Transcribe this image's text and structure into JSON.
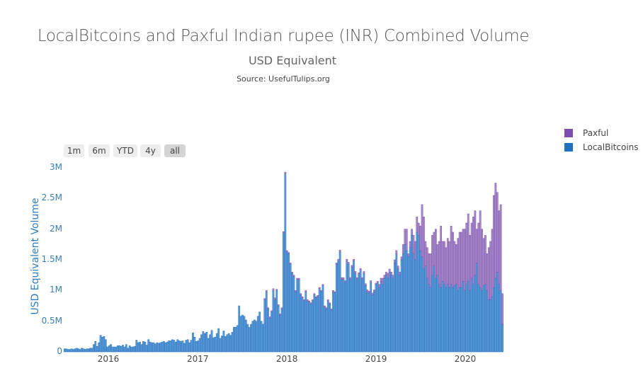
{
  "chart_data": {
    "type": "bar",
    "barmode": "stack",
    "title": "LocalBitcoins and Paxful Indian rupee (INR) Combined Volume",
    "subtitle": "USD Equivalent",
    "source": "Source: UsefulTulips.org",
    "xlabel": "",
    "ylabel": "USD Equivalent Volume",
    "bar_period": "weekly",
    "x_range": [
      "2015-07-06",
      "2020-06-08"
    ],
    "x_ticks": [
      "2016",
      "2017",
      "2018",
      "2019",
      "2020"
    ],
    "ylim": [
      0,
      3000000
    ],
    "y_ticks": [
      {
        "value": 0,
        "label": "0"
      },
      {
        "value": 500000,
        "label": "0.5M"
      },
      {
        "value": 1000000,
        "label": "1M"
      },
      {
        "value": 1500000,
        "label": "1.5M"
      },
      {
        "value": 2000000,
        "label": "2M"
      },
      {
        "value": 2500000,
        "label": "2.5M"
      },
      {
        "value": 3000000,
        "label": "3M"
      }
    ],
    "value_unit": "M USD",
    "grid": false,
    "legend_position": "top-right",
    "series": [
      {
        "name": "LocalBitcoins",
        "color": "#1f6fc0",
        "fill": "#5e9bd6",
        "values": [
          0.05,
          0.05,
          0.04,
          0.04,
          0.05,
          0.04,
          0.05,
          0.06,
          0.05,
          0.04,
          0.06,
          0.05,
          0.04,
          0.05,
          0.05,
          0.06,
          0.06,
          0.12,
          0.17,
          0.09,
          0.15,
          0.27,
          0.24,
          0.25,
          0.2,
          0.08,
          0.1,
          0.12,
          0.08,
          0.08,
          0.08,
          0.1,
          0.1,
          0.09,
          0.11,
          0.08,
          0.12,
          0.06,
          0.1,
          0.08,
          0.08,
          0.09,
          0.19,
          0.15,
          0.16,
          0.12,
          0.17,
          0.16,
          0.11,
          0.2,
          0.16,
          0.15,
          0.15,
          0.13,
          0.15,
          0.14,
          0.15,
          0.16,
          0.17,
          0.15,
          0.16,
          0.18,
          0.18,
          0.2,
          0.19,
          0.16,
          0.2,
          0.18,
          0.17,
          0.18,
          0.14,
          0.19,
          0.2,
          0.15,
          0.19,
          0.31,
          0.24,
          0.17,
          0.18,
          0.22,
          0.28,
          0.33,
          0.3,
          0.32,
          0.22,
          0.28,
          0.35,
          0.23,
          0.24,
          0.3,
          0.38,
          0.22,
          0.26,
          0.34,
          0.25,
          0.28,
          0.3,
          0.27,
          0.32,
          0.4,
          0.4,
          0.43,
          0.75,
          0.58,
          0.6,
          0.58,
          0.52,
          0.45,
          0.4,
          0.45,
          0.5,
          0.52,
          0.5,
          0.58,
          0.65,
          0.5,
          0.45,
          0.85,
          0.98,
          0.7,
          0.55,
          0.65,
          1.0,
          0.85,
          1.0,
          0.75,
          0.6,
          0.7,
          1.93,
          2.9,
          1.63,
          1.6,
          1.43,
          1.28,
          1.23,
          0.98,
          1.18,
          1.18,
          0.93,
          0.88,
          0.83,
          0.98,
          0.83,
          0.81,
          0.78,
          0.83,
          0.93,
          0.88,
          0.9,
          1.03,
          0.98,
          1.08,
          0.73,
          0.7,
          0.83,
          0.78,
          0.68,
          0.98,
          0.96,
          1.43,
          1.48,
          1.63,
          1.18,
          1.18,
          1.13,
          1.48,
          1.43,
          1.18,
          1.38,
          1.48,
          1.28,
          1.18,
          1.26,
          1.33,
          1.18,
          1.28,
          1.08,
          0.98,
          0.96,
          1.13,
          0.93,
          0.98,
          1.1,
          1.12,
          1.05,
          1.15,
          1.1,
          1.2,
          1.25,
          1.2,
          1.3,
          1.25,
          1.2,
          1.45,
          1.6,
          1.35,
          1.25,
          1.5,
          1.6,
          1.75,
          1.65,
          1.55,
          1.7,
          1.9,
          1.6,
          1.5,
          1.95,
          1.9,
          1.65,
          1.55,
          1.35,
          1.4,
          1.2,
          1.1,
          1.05,
          1.25,
          1.4,
          1.2,
          1.25,
          1.1,
          1.05,
          1.15,
          1.1,
          1.05,
          1.1,
          1.05,
          1.1,
          1.05,
          1.08,
          1.1,
          1.0,
          1.05,
          1.05,
          1.15,
          1.0,
          1.1,
          1.15,
          1.0,
          1.2,
          1.1,
          1.25,
          1.45,
          1.1,
          1.05,
          1.0,
          1.08,
          1.1,
          1.0,
          0.85,
          0.85,
          0.9,
          1.05,
          1.2,
          1.3,
          1.1,
          1.0,
          0.45
        ]
      },
      {
        "name": "Paxful",
        "color": "#7b4fb0",
        "fill": "#a88cc9",
        "values": [
          0,
          0,
          0,
          0,
          0,
          0,
          0,
          0,
          0,
          0,
          0,
          0,
          0,
          0,
          0,
          0,
          0,
          0,
          0,
          0,
          0,
          0,
          0,
          0,
          0,
          0,
          0,
          0,
          0,
          0,
          0,
          0,
          0,
          0,
          0,
          0,
          0,
          0,
          0,
          0,
          0,
          0,
          0,
          0,
          0,
          0,
          0,
          0,
          0,
          0,
          0,
          0,
          0,
          0,
          0,
          0,
          0,
          0,
          0,
          0,
          0,
          0,
          0,
          0,
          0,
          0,
          0,
          0,
          0,
          0,
          0,
          0,
          0,
          0,
          0,
          0,
          0,
          0,
          0,
          0,
          0,
          0,
          0,
          0,
          0,
          0,
          0,
          0,
          0,
          0,
          0,
          0,
          0,
          0,
          0,
          0,
          0,
          0,
          0,
          0,
          0,
          0,
          0,
          0,
          0,
          0,
          0,
          0,
          0,
          0,
          0,
          0,
          0,
          0,
          0,
          0,
          0,
          0.02,
          0.02,
          0.02,
          0.02,
          0.02,
          0.03,
          0.03,
          0.02,
          0.02,
          0.02,
          0.02,
          0.03,
          0.03,
          0.02,
          0.02,
          0.02,
          0.02,
          0.02,
          0.02,
          0.02,
          0.02,
          0.02,
          0.02,
          0.02,
          0.02,
          0.02,
          0.02,
          0.02,
          0.02,
          0.02,
          0.02,
          0.02,
          0.02,
          0.02,
          0.02,
          0.02,
          0.02,
          0.02,
          0.02,
          0.02,
          0.02,
          0.02,
          0.02,
          0.03,
          0.03,
          0.03,
          0.03,
          0.03,
          0.03,
          0.03,
          0.03,
          0.03,
          0.03,
          0.03,
          0.03,
          0.03,
          0.03,
          0.03,
          0.03,
          0.03,
          0.03,
          0.03,
          0.03,
          0.03,
          0.03,
          0.02,
          0.03,
          0.05,
          0.05,
          0.1,
          0.05,
          0.05,
          0.08,
          0.05,
          0.05,
          0.05,
          0.05,
          0.05,
          0.05,
          0.05,
          0.05,
          0.15,
          0.25,
          0.35,
          0.05,
          0.1,
          0.1,
          0.3,
          0.3,
          0.25,
          0.2,
          0.4,
          0.85,
          0.85,
          0.4,
          0.5,
          0.5,
          0.55,
          0.65,
          0.55,
          0.8,
          0.5,
          0.7,
          1.0,
          0.65,
          0.7,
          0.65,
          0.75,
          0.75,
          0.95,
          0.9,
          0.72,
          0.65,
          0.85,
          0.9,
          0.9,
          0.85,
          1.0,
          1.0,
          1.1,
          0.9,
          0.9,
          1.1,
          1.05,
          0.55,
          1.0,
          1.25,
          1.0,
          0.77,
          0.8,
          0.6,
          0.85,
          0.95,
          1.1,
          1.5,
          1.55,
          1.3,
          1.2,
          1.4,
          0.5
        ]
      }
    ]
  },
  "range_selector": {
    "buttons": [
      {
        "label": "1m",
        "active": false
      },
      {
        "label": "6m",
        "active": false
      },
      {
        "label": "YTD",
        "active": false
      },
      {
        "label": "4y",
        "active": false
      },
      {
        "label": "all",
        "active": true
      }
    ]
  }
}
